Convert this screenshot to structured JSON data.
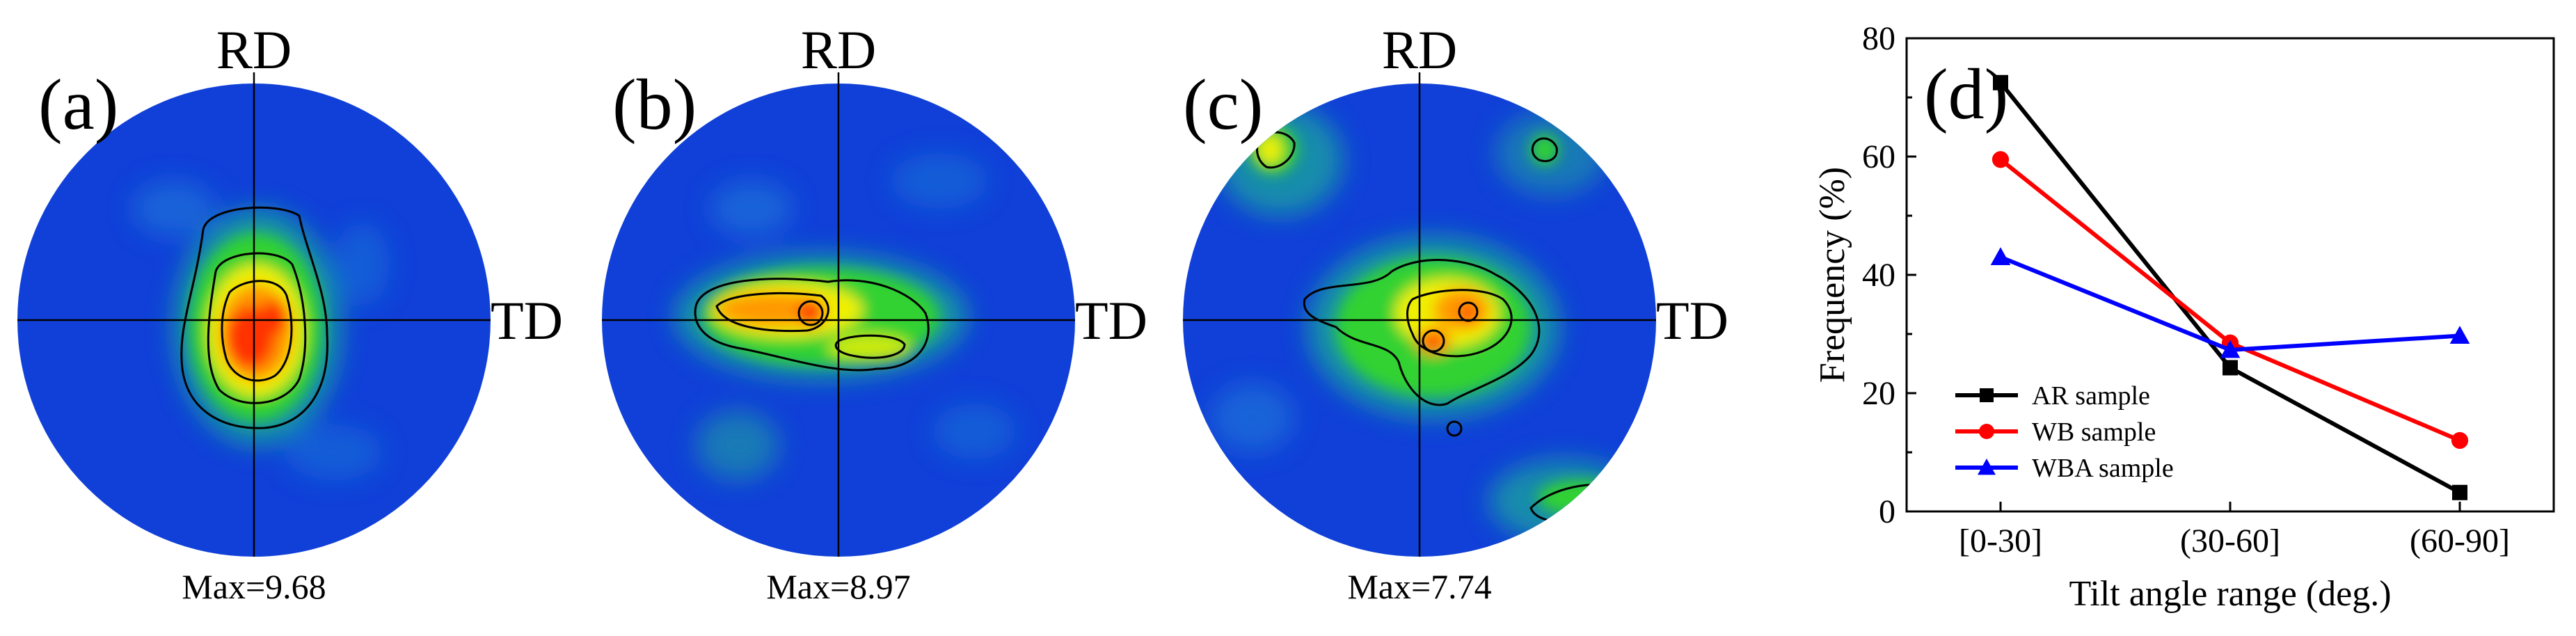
{
  "pole_figures": [
    {
      "label": "(a)",
      "rd": "RD",
      "td": "TD",
      "max": "Max=9.68"
    },
    {
      "label": "(b)",
      "rd": "RD",
      "td": "TD",
      "max": "Max=8.97"
    },
    {
      "label": "(c)",
      "rd": "RD",
      "td": "TD",
      "max": "Max=7.74"
    }
  ],
  "colors": {
    "background_blue": "#1040d8",
    "ar": "#000000",
    "wb": "#ff0000",
    "wba": "#0000ff"
  },
  "chart_data": {
    "type": "line",
    "panel_label": "(d)",
    "title": "",
    "xlabel": "Tilt angle range (deg.)",
    "ylabel": "Frequency (%)",
    "categories": [
      "[0-30]",
      "(30-60]",
      "(60-90]"
    ],
    "ylim": [
      0,
      80
    ],
    "yticks": [
      0,
      20,
      40,
      60,
      80
    ],
    "legend_position": "bottom-left",
    "series": [
      {
        "name": "AR sample",
        "values": [
          72.5,
          24.3,
          3.2
        ],
        "color": "#000000",
        "marker": "square"
      },
      {
        "name": "WB sample",
        "values": [
          59.5,
          28.5,
          12.0
        ],
        "color": "#ff0000",
        "marker": "circle"
      },
      {
        "name": "WBA sample",
        "values": [
          43.0,
          27.3,
          29.7
        ],
        "color": "#0000ff",
        "marker": "triangle"
      }
    ]
  }
}
